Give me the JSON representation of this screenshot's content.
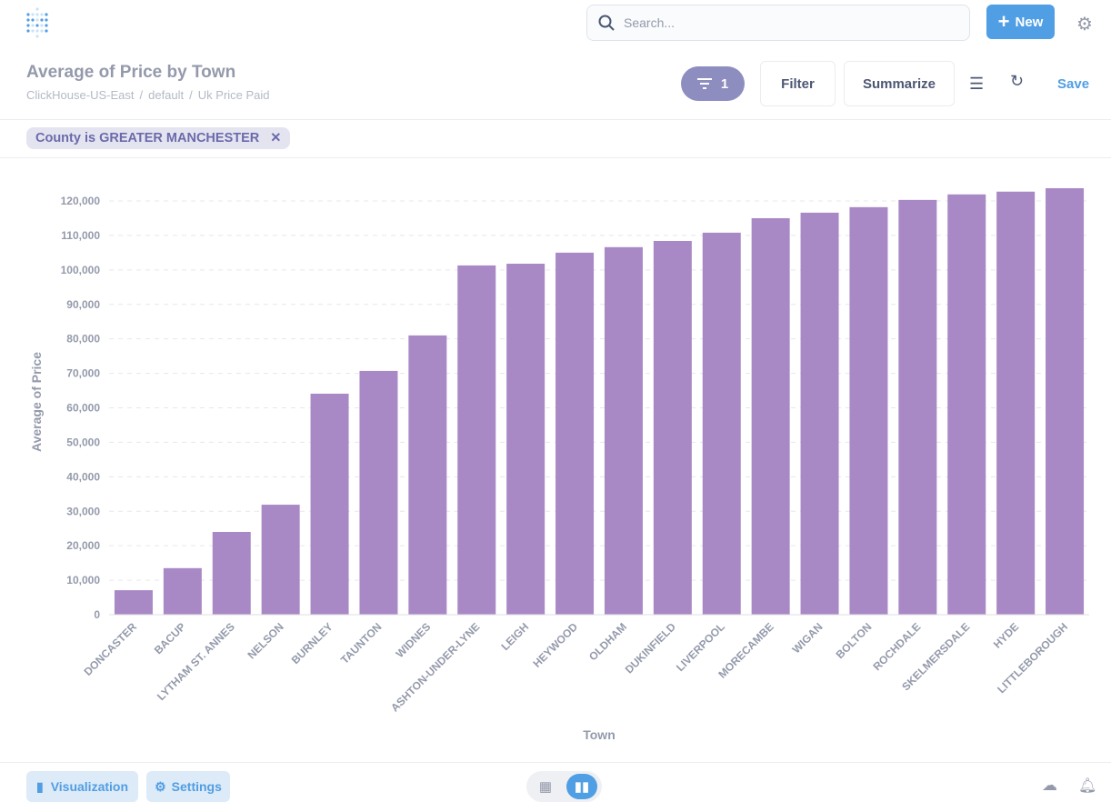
{
  "header": {
    "search_placeholder": "Search...",
    "new_label": "New",
    "icons": {
      "logo": "metabase-logo",
      "search": "search-icon",
      "settings": "gear-icon"
    }
  },
  "question": {
    "title": "Average of Price by Town",
    "breadcrumbs": [
      "ClickHouse-US-East",
      "default",
      "Uk Price Paid"
    ],
    "filter_count": "1",
    "filter_label": "Filter",
    "summarize_label": "Summarize",
    "save_label": "Save",
    "active_filter": "County is GREATER MANCHESTER"
  },
  "footer": {
    "visualization_label": "Visualization",
    "settings_label": "Settings",
    "view_modes": [
      "table",
      "chart"
    ],
    "active_view": "chart"
  },
  "colors": {
    "bar": "#a989c5",
    "accent": "#509ee3",
    "filter": "#8e8dc0"
  },
  "chart_data": {
    "type": "bar",
    "xlabel": "Town",
    "ylabel": "Average of Price",
    "ylim": [
      0,
      120000
    ],
    "yticks": [
      "0",
      "10,000",
      "20,000",
      "30,000",
      "40,000",
      "50,000",
      "60,000",
      "70,000",
      "80,000",
      "90,000",
      "100,000",
      "110,000",
      "120,000"
    ],
    "grid": true,
    "categories": [
      "DONCASTER",
      "BACUP",
      "LYTHAM ST. ANNES",
      "NELSON",
      "BURNLEY",
      "TAUNTON",
      "WIDNES",
      "ASHTON-UNDER-LYNE",
      "LEIGH",
      "HEYWOOD",
      "OLDHAM",
      "DUKINFIELD",
      "LIVERPOOL",
      "MORECAMBE",
      "WIGAN",
      "BOLTON",
      "ROCHDALE",
      "SKELMERSDALE",
      "HYDE",
      "LITTLEBOROUGH"
    ],
    "values": [
      7100,
      13500,
      24000,
      31900,
      64100,
      70700,
      81000,
      101300,
      101800,
      105000,
      106600,
      108400,
      110800,
      115000,
      116600,
      118200,
      120300,
      121900,
      122700,
      123700
    ]
  }
}
